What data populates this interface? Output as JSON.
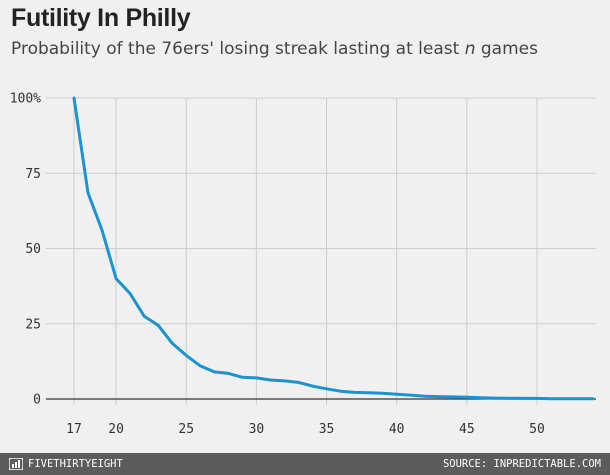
{
  "header": {
    "title": "Futility In Philly",
    "subtitle_prefix": "Probability of the 76ers' losing streak lasting at least ",
    "subtitle_var": "n",
    "subtitle_suffix": " games"
  },
  "footer": {
    "brand": "FIVETHIRTYEIGHT",
    "source": "SOURCE: INPREDICTABLE.COM"
  },
  "colors": {
    "line": "#1a93d1",
    "grid": "#cccccc",
    "baseline": "#333333",
    "background": "#f0f0f0",
    "footer": "#5c5c5c"
  },
  "chart_data": {
    "type": "line",
    "title": "Futility In Philly",
    "subtitle": "Probability of the 76ers' losing streak lasting at least n games",
    "xlabel": "",
    "ylabel": "",
    "xlim": [
      16,
      54
    ],
    "ylim": [
      0,
      100
    ],
    "x_ticks": [
      17,
      20,
      25,
      30,
      35,
      40,
      45,
      50
    ],
    "y_ticks": [
      0,
      25,
      50,
      75,
      100
    ],
    "y_tick_labels": [
      "0",
      "25",
      "50",
      "75",
      "100%"
    ],
    "grid": true,
    "series": [
      {
        "x": [
          17,
          18,
          19,
          20,
          21,
          22,
          23,
          24,
          25,
          26,
          27,
          28,
          29,
          30,
          31,
          32,
          33,
          34,
          35,
          36,
          37,
          38,
          39,
          40,
          41,
          42,
          43,
          44,
          45,
          46,
          47,
          48,
          49,
          50,
          51,
          52,
          53,
          54
        ],
        "values": [
          100,
          68.5,
          56,
          40,
          35,
          27.5,
          24.5,
          18.5,
          14.5,
          11,
          9,
          8.5,
          7.2,
          7,
          6.3,
          6,
          5.5,
          4.3,
          3.4,
          2.6,
          2.2,
          2.1,
          1.9,
          1.6,
          1.3,
          0.9,
          0.8,
          0.7,
          0.6,
          0.4,
          0.3,
          0.25,
          0.2,
          0.2,
          0.1,
          0.1,
          0.05,
          0.05
        ]
      }
    ]
  }
}
